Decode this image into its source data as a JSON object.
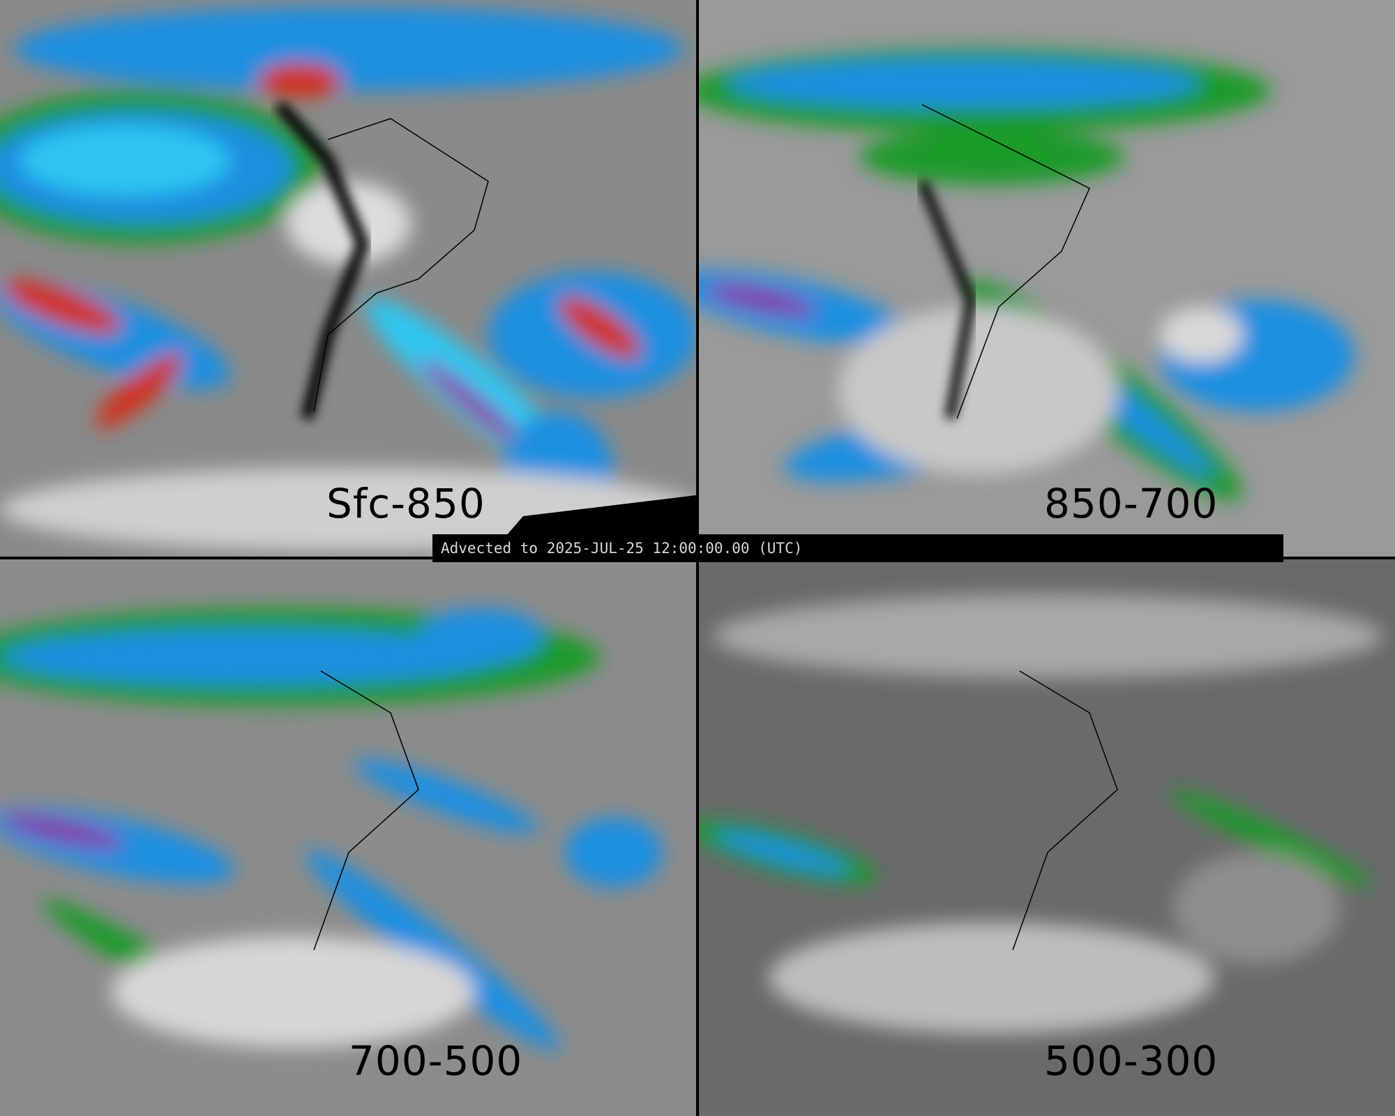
{
  "panels": [
    {
      "label": "Sfc-850",
      "moisture": "high"
    },
    {
      "label": "850-700",
      "moisture": "moderate"
    },
    {
      "label": "700-500",
      "moisture": "moderate"
    },
    {
      "label": "500-300",
      "moisture": "low"
    }
  ],
  "banner": {
    "text": "Advected to 2025-JUL-25 12:00:00.00 (UTC)"
  },
  "colors": {
    "background_gray": "#6f6f6f",
    "light_gray": "#d9d9d9",
    "green": "#1a9a2a",
    "blue": "#1e8fe0",
    "cyan": "#2fc6f0",
    "purple": "#8a2aa0",
    "red": "#d0301a",
    "land_outline": "#000000"
  }
}
